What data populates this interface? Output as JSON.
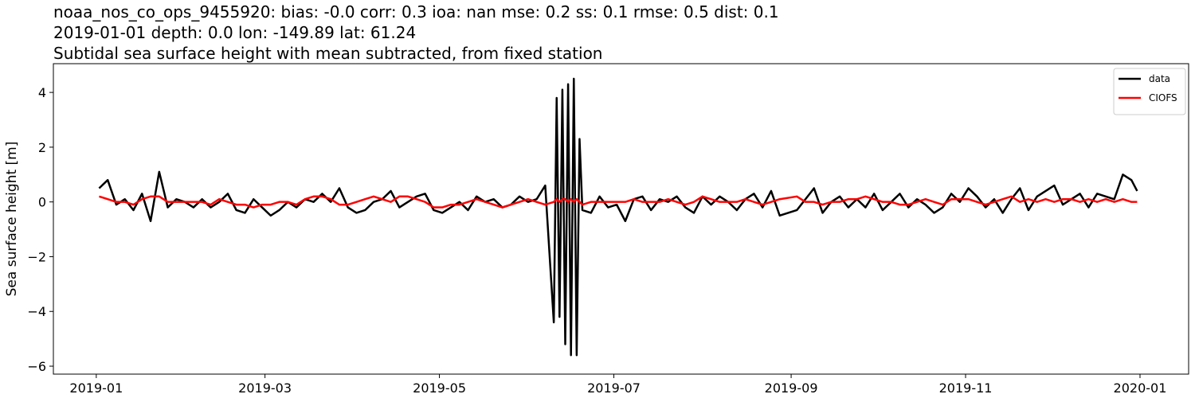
{
  "chart_data": {
    "type": "line",
    "title": [
      "noaa_nos_co_ops_9455920: bias: -0.0  corr: 0.3  ioa: nan  mse: 0.2  ss: 0.1  rmse: 0.5  dist: 0.1",
      "2019-01-01 depth: 0.0 lon: -149.89 lat: 61.24",
      "Subtidal sea surface height with mean subtracted, from fixed station"
    ],
    "ylabel": "Sea surface height [m]",
    "x": [
      "2019-01-02",
      "2019-01-05",
      "2019-01-08",
      "2019-01-11",
      "2019-01-14",
      "2019-01-17",
      "2019-01-20",
      "2019-01-23",
      "2019-01-26",
      "2019-01-29",
      "2019-02-01",
      "2019-02-04",
      "2019-02-07",
      "2019-02-10",
      "2019-02-13",
      "2019-02-16",
      "2019-02-19",
      "2019-02-22",
      "2019-02-25",
      "2019-02-28",
      "2019-03-03",
      "2019-03-06",
      "2019-03-09",
      "2019-03-12",
      "2019-03-15",
      "2019-03-18",
      "2019-03-21",
      "2019-03-24",
      "2019-03-27",
      "2019-03-30",
      "2019-04-02",
      "2019-04-05",
      "2019-04-08",
      "2019-04-11",
      "2019-04-14",
      "2019-04-17",
      "2019-04-20",
      "2019-04-23",
      "2019-04-26",
      "2019-04-29",
      "2019-05-02",
      "2019-05-05",
      "2019-05-08",
      "2019-05-11",
      "2019-05-14",
      "2019-05-17",
      "2019-05-20",
      "2019-05-23",
      "2019-05-26",
      "2019-05-29",
      "2019-06-01",
      "2019-06-04",
      "2019-06-07",
      "2019-06-10",
      "2019-06-11",
      "2019-06-12",
      "2019-06-13",
      "2019-06-14",
      "2019-06-15",
      "2019-06-16",
      "2019-06-17",
      "2019-06-18",
      "2019-06-19",
      "2019-06-20",
      "2019-06-23",
      "2019-06-26",
      "2019-06-29",
      "2019-07-02",
      "2019-07-05",
      "2019-07-08",
      "2019-07-11",
      "2019-07-14",
      "2019-07-17",
      "2019-07-20",
      "2019-07-23",
      "2019-07-26",
      "2019-07-29",
      "2019-08-01",
      "2019-08-04",
      "2019-08-07",
      "2019-08-10",
      "2019-08-13",
      "2019-08-16",
      "2019-08-19",
      "2019-08-22",
      "2019-08-25",
      "2019-08-28",
      "2019-09-03",
      "2019-09-06",
      "2019-09-09",
      "2019-09-12",
      "2019-09-15",
      "2019-09-18",
      "2019-09-21",
      "2019-09-24",
      "2019-09-27",
      "2019-09-30",
      "2019-10-03",
      "2019-10-06",
      "2019-10-09",
      "2019-10-12",
      "2019-10-15",
      "2019-10-18",
      "2019-10-21",
      "2019-10-24",
      "2019-10-27",
      "2019-10-30",
      "2019-11-02",
      "2019-11-05",
      "2019-11-08",
      "2019-11-11",
      "2019-11-14",
      "2019-11-17",
      "2019-11-20",
      "2019-11-23",
      "2019-11-26",
      "2019-11-29",
      "2019-12-02",
      "2019-12-05",
      "2019-12-08",
      "2019-12-11",
      "2019-12-14",
      "2019-12-17",
      "2019-12-20",
      "2019-12-23",
      "2019-12-26",
      "2019-12-29",
      "2019-12-31"
    ],
    "series": [
      {
        "name": "data",
        "color": "#000000",
        "values": [
          0.5,
          0.8,
          -0.1,
          0.1,
          -0.3,
          0.3,
          -0.7,
          1.1,
          -0.2,
          0.1,
          0.0,
          -0.2,
          0.1,
          -0.2,
          0.0,
          0.3,
          -0.3,
          -0.4,
          0.1,
          -0.2,
          -0.5,
          -0.3,
          0.0,
          -0.2,
          0.1,
          0.0,
          0.3,
          0.0,
          0.5,
          -0.2,
          -0.4,
          -0.3,
          0.0,
          0.1,
          0.4,
          -0.2,
          0.0,
          0.2,
          0.3,
          -0.3,
          -0.4,
          -0.2,
          0.0,
          -0.3,
          0.2,
          0.0,
          0.1,
          -0.2,
          -0.1,
          0.2,
          0.0,
          0.1,
          0.6,
          -4.4,
          3.8,
          -4.2,
          4.1,
          -5.2,
          4.3,
          -5.6,
          4.5,
          -5.6,
          2.3,
          -0.3,
          -0.4,
          0.2,
          -0.2,
          -0.1,
          -0.7,
          0.1,
          0.2,
          -0.3,
          0.1,
          0.0,
          0.2,
          -0.2,
          -0.4,
          0.2,
          -0.1,
          0.2,
          0.0,
          -0.3,
          0.1,
          0.3,
          -0.2,
          0.4,
          -0.5,
          -0.3,
          0.1,
          0.5,
          -0.4,
          0.0,
          0.2,
          -0.2,
          0.1,
          -0.2,
          0.3,
          -0.3,
          0.0,
          0.3,
          -0.2,
          0.1,
          -0.1,
          -0.4,
          -0.2,
          0.3,
          0.0,
          0.5,
          0.2,
          -0.2,
          0.1,
          -0.4,
          0.1,
          0.5,
          -0.3,
          0.2,
          0.4,
          0.6,
          -0.1,
          0.1,
          0.3,
          -0.2,
          0.3,
          0.2,
          0.1,
          1.0,
          0.8,
          0.4
        ]
      },
      {
        "name": "CIOFS",
        "color": "#ff0000",
        "values": [
          0.2,
          0.1,
          0.0,
          0.0,
          -0.1,
          0.1,
          0.2,
          0.2,
          0.0,
          0.0,
          0.0,
          0.0,
          0.0,
          -0.1,
          0.1,
          0.0,
          -0.1,
          -0.1,
          -0.2,
          -0.1,
          -0.1,
          0.0,
          0.0,
          -0.1,
          0.1,
          0.2,
          0.2,
          0.1,
          -0.1,
          -0.1,
          0.0,
          0.1,
          0.2,
          0.1,
          0.0,
          0.2,
          0.2,
          0.1,
          0.0,
          -0.2,
          -0.2,
          -0.1,
          -0.1,
          0.0,
          0.1,
          0.0,
          -0.1,
          -0.2,
          -0.1,
          0.0,
          0.1,
          0.0,
          -0.1,
          0.0,
          0.1,
          0.0,
          0.1,
          0.1,
          0.0,
          0.1,
          0.0,
          0.1,
          0.0,
          -0.1,
          0.0,
          0.0,
          0.0,
          0.0,
          0.0,
          0.1,
          0.0,
          0.0,
          0.0,
          0.1,
          0.0,
          -0.1,
          0.0,
          0.2,
          0.1,
          0.0,
          0.0,
          0.0,
          0.1,
          0.0,
          -0.1,
          0.0,
          0.1,
          0.2,
          0.0,
          0.0,
          -0.1,
          0.0,
          0.0,
          0.1,
          0.1,
          0.2,
          0.1,
          0.0,
          0.0,
          -0.1,
          -0.1,
          0.0,
          0.1,
          0.0,
          -0.1,
          0.1,
          0.1,
          0.1,
          0.0,
          -0.1,
          0.0,
          0.1,
          0.2,
          0.0,
          0.1,
          0.0,
          0.1,
          0.0,
          0.1,
          0.1,
          0.0,
          0.1,
          0.0,
          0.1,
          0.0,
          0.1,
          0.0,
          0.0
        ]
      }
    ],
    "xlim": [
      "2018-12-17",
      "2020-01-18"
    ],
    "xticks": [
      "2019-01",
      "2019-03",
      "2019-05",
      "2019-07",
      "2019-09",
      "2019-11",
      "2020-01"
    ],
    "ylim": [
      -6.29,
      5.05
    ],
    "yticks": [
      {
        "value": -6,
        "label": "−6"
      },
      {
        "value": -4,
        "label": "−4"
      },
      {
        "value": -2,
        "label": "−2"
      },
      0,
      2,
      4
    ],
    "grid": false,
    "legend": "upper right"
  }
}
